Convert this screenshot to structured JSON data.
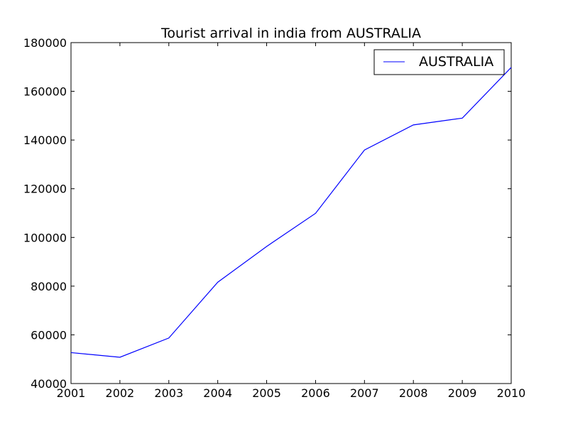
{
  "chart_data": {
    "type": "line",
    "title": "Tourist arrival in india from AUSTRALIA",
    "xlabel": "",
    "ylabel": "",
    "x": [
      2001,
      2002,
      2003,
      2004,
      2005,
      2006,
      2007,
      2008,
      2009,
      2010
    ],
    "series": [
      {
        "name": "AUSTRALIA",
        "color": "#0000ff",
        "values": [
          52700,
          50800,
          58700,
          81600,
          96300,
          109900,
          135900,
          146200,
          149000,
          169800
        ]
      }
    ],
    "xlim": [
      2001,
      2010
    ],
    "ylim": [
      40000,
      180000
    ],
    "x_ticks": [
      "2001",
      "2002",
      "2003",
      "2004",
      "2005",
      "2006",
      "2007",
      "2008",
      "2009",
      "2010"
    ],
    "y_ticks": [
      "40000",
      "60000",
      "80000",
      "100000",
      "120000",
      "140000",
      "160000",
      "180000"
    ],
    "legend_position": "top-right",
    "grid": false
  }
}
